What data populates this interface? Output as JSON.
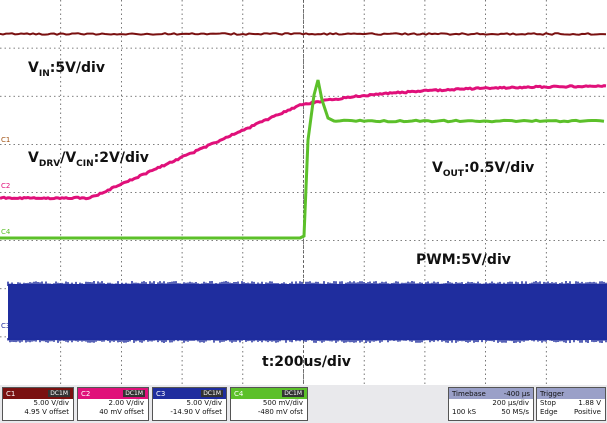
{
  "channels": [
    {
      "id": "C1",
      "color": "#7a1010",
      "line1": "5.00 V/div",
      "line2": "4.95 V offset"
    },
    {
      "id": "C2",
      "color": "#e0107a",
      "line1": "2.00 V/div",
      "line2": "40 mV offset"
    },
    {
      "id": "C3",
      "color": "#1f2d9e",
      "line1": "5.00 V/div",
      "line2": "-14.90 V offset"
    },
    {
      "id": "C4",
      "color": "#5cc02a",
      "line1": "500 mV/div",
      "line2": "-480 mV ofst"
    }
  ],
  "labels": {
    "vin_main": "V",
    "vin_sub": "IN",
    "vin_rest": ":5V/div",
    "vdrv_main": "V",
    "vdrv_sub": "DRV",
    "vdrv_mid": "/V",
    "vcin_sub": "CIN",
    "vdrv_rest": ":2V/div",
    "vout_main": "V",
    "vout_sub": "OUT",
    "vout_rest": ":0.5V/div",
    "pwm": "PWM:5V/div",
    "time": "t:200us/div"
  },
  "timebase": {
    "title": "Timebase",
    "value": "-400 µs",
    "line1": "200 µs/div",
    "line2a": "100 kS",
    "line2b": "50 MS/s"
  },
  "trigger": {
    "title": "Trigger",
    "line1a": "Stop",
    "line1b": "1.88 V",
    "line2a": "Edge",
    "line2b": "Positive"
  },
  "coupling_tag": "DC1M"
}
